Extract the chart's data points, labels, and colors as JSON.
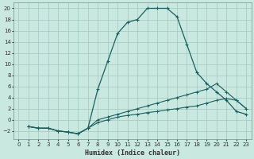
{
  "xlabel": "Humidex (Indice chaleur)",
  "bg_color": "#c8e8e0",
  "grid_color": "#a0c8c0",
  "line_color": "#1a6060",
  "xlim": [
    -0.5,
    23.5
  ],
  "ylim": [
    -3.5,
    21
  ],
  "xticks": [
    0,
    1,
    2,
    3,
    4,
    5,
    6,
    7,
    8,
    9,
    10,
    11,
    12,
    13,
    14,
    15,
    16,
    17,
    18,
    19,
    20,
    21,
    22,
    23
  ],
  "yticks": [
    -2,
    0,
    2,
    4,
    6,
    8,
    10,
    12,
    14,
    16,
    18,
    20
  ],
  "line1_x": [
    1,
    2,
    3,
    4,
    5,
    6,
    7,
    8,
    9,
    10,
    11,
    12,
    13,
    14,
    15,
    16,
    17,
    18,
    19,
    20,
    21,
    22,
    23
  ],
  "line1_y": [
    -1.2,
    -1.5,
    -1.5,
    -2.0,
    -2.2,
    -2.5,
    -1.5,
    5.5,
    10.5,
    15.5,
    17.5,
    18.0,
    20.0,
    20.0,
    20.0,
    18.5,
    13.5,
    8.5,
    6.5,
    5.0,
    3.5,
    1.5,
    1.0
  ],
  "line2_x": [
    1,
    2,
    3,
    4,
    5,
    6,
    7,
    8,
    9,
    10,
    11,
    12,
    13,
    14,
    15,
    16,
    17,
    18,
    19,
    20,
    21,
    22,
    23
  ],
  "line2_y": [
    -1.2,
    -1.5,
    -1.5,
    -2.0,
    -2.2,
    -2.5,
    -1.5,
    0.0,
    0.5,
    1.0,
    1.5,
    2.0,
    2.5,
    3.0,
    3.5,
    4.0,
    4.5,
    5.0,
    5.5,
    6.5,
    5.0,
    3.5,
    2.0
  ],
  "line3_x": [
    1,
    2,
    3,
    4,
    5,
    6,
    7,
    8,
    9,
    10,
    11,
    12,
    13,
    14,
    15,
    16,
    17,
    18,
    19,
    20,
    21,
    22,
    23
  ],
  "line3_y": [
    -1.2,
    -1.5,
    -1.5,
    -2.0,
    -2.2,
    -2.5,
    -1.5,
    -0.5,
    0.0,
    0.5,
    0.8,
    1.0,
    1.3,
    1.5,
    1.8,
    2.0,
    2.3,
    2.5,
    3.0,
    3.5,
    3.8,
    3.5,
    2.0
  ]
}
